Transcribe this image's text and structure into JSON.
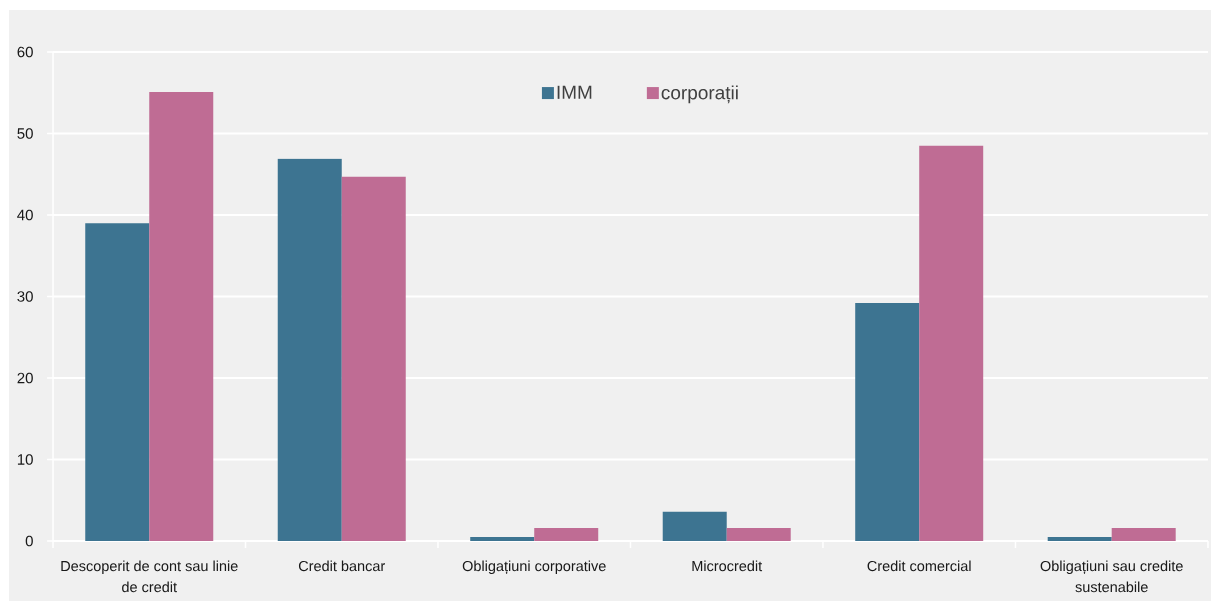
{
  "chart_data": {
    "type": "bar",
    "categories": [
      "Descoperit de cont sau linie de credit",
      "Credit bancar",
      "Obligațiuni corporative",
      "Microcredit",
      "Credit comercial",
      "Obligațiuni sau credite sustenabile"
    ],
    "series": [
      {
        "name": "IMM",
        "color": "#3d7491",
        "values": [
          39.0,
          46.9,
          0.5,
          3.6,
          29.2,
          0.5
        ]
      },
      {
        "name": "corporații",
        "color": "#bf6c94",
        "values": [
          55.1,
          44.7,
          1.6,
          1.6,
          48.5,
          1.6
        ]
      }
    ],
    "ylim": [
      0,
      60
    ],
    "yticks": [
      0,
      10,
      20,
      30,
      40,
      50,
      60
    ],
    "grid": "y",
    "legend": "top"
  }
}
